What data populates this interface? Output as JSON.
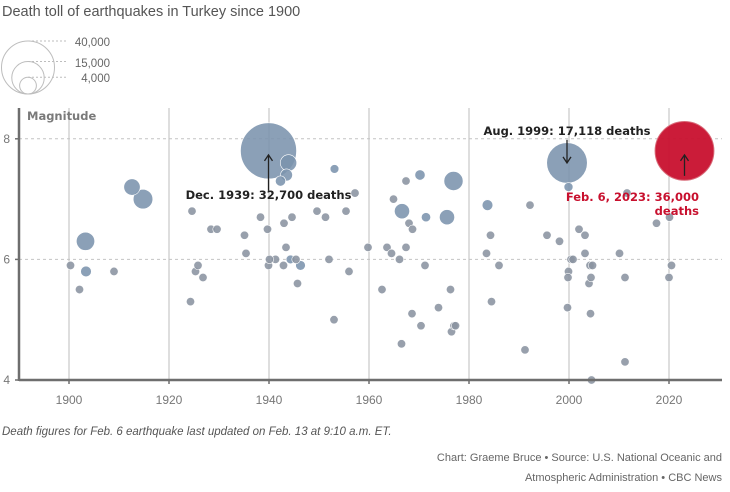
{
  "chart_data": {
    "type": "scatter",
    "title": "Death toll of earthquakes in Turkey since 1900",
    "ylabel": "Magnitude",
    "xlabel": "",
    "xlim": [
      1890,
      2030
    ],
    "ylim": [
      4,
      8.4
    ],
    "x_ticks": [
      1900,
      1920,
      1940,
      1960,
      1980,
      2000,
      2020
    ],
    "y_ticks": [
      4,
      6,
      8
    ],
    "grid": "dashed horizontal at y ticks, solid vertical at x ticks",
    "size_legend": {
      "values": [
        40000,
        15000,
        4000
      ],
      "labels": [
        "40,000",
        "15,000",
        "4,000"
      ],
      "placement": "top-left"
    },
    "colors": {
      "default": "#7b93ad",
      "highlight": "#c8102e",
      "small": "#8a93a0"
    },
    "points": [
      {
        "year": 1900.3,
        "mag": 5.9,
        "deaths": 140
      },
      {
        "year": 1902.1,
        "mag": 5.5,
        "deaths": 100
      },
      {
        "year": 1903.3,
        "mag": 6.3,
        "deaths": 3500
      },
      {
        "year": 1903.4,
        "mag": 5.8,
        "deaths": 1200
      },
      {
        "year": 1909.0,
        "mag": 5.8,
        "deaths": 100
      },
      {
        "year": 1912.6,
        "mag": 7.2,
        "deaths": 2800
      },
      {
        "year": 1914.8,
        "mag": 7.0,
        "deaths": 4000
      },
      {
        "year": 1924.6,
        "mag": 6.8,
        "deaths": 100
      },
      {
        "year": 1924.3,
        "mag": 5.3,
        "deaths": 100
      },
      {
        "year": 1925.3,
        "mag": 5.8,
        "deaths": 150
      },
      {
        "year": 1925.8,
        "mag": 5.9,
        "deaths": 100
      },
      {
        "year": 1926.8,
        "mag": 5.7,
        "deaths": 350
      },
      {
        "year": 1928.4,
        "mag": 6.5,
        "deaths": 200
      },
      {
        "year": 1929.6,
        "mag": 6.5,
        "deaths": 150
      },
      {
        "year": 1935.1,
        "mag": 6.4,
        "deaths": 150
      },
      {
        "year": 1935.4,
        "mag": 6.1,
        "deaths": 700
      },
      {
        "year": 1938.3,
        "mag": 6.7,
        "deaths": 150
      },
      {
        "year": 1939.7,
        "mag": 6.5,
        "deaths": 100
      },
      {
        "year": 1939.9,
        "mag": 5.9,
        "deaths": 100
      },
      {
        "year": 1940.1,
        "mag": 6.0,
        "deaths": 100
      },
      {
        "year": 1939.9,
        "mag": 7.8,
        "deaths": 32700,
        "label": "Dec. 1939: 32,700 deaths"
      },
      {
        "year": 1941.3,
        "mag": 6.0,
        "deaths": 200
      },
      {
        "year": 1942.3,
        "mag": 7.3,
        "deaths": 1100
      },
      {
        "year": 1943.0,
        "mag": 6.6,
        "deaths": 300
      },
      {
        "year": 1943.4,
        "mag": 6.2,
        "deaths": 300
      },
      {
        "year": 1943.5,
        "mag": 7.4,
        "deaths": 1500
      },
      {
        "year": 1943.9,
        "mag": 7.6,
        "deaths": 2800
      },
      {
        "year": 1942.9,
        "mag": 5.9,
        "deaths": 200
      },
      {
        "year": 1944.3,
        "mag": 6.0,
        "deaths": 800
      },
      {
        "year": 1944.6,
        "mag": 6.7,
        "deaths": 100
      },
      {
        "year": 1945.4,
        "mag": 6.0,
        "deaths": 300
      },
      {
        "year": 1946.3,
        "mag": 5.9,
        "deaths": 1000
      },
      {
        "year": 1945.7,
        "mag": 5.6,
        "deaths": 150
      },
      {
        "year": 1949.6,
        "mag": 6.8,
        "deaths": 400
      },
      {
        "year": 1951.3,
        "mag": 6.7,
        "deaths": 100
      },
      {
        "year": 1952.0,
        "mag": 6.0,
        "deaths": 100
      },
      {
        "year": 1953.1,
        "mag": 7.5,
        "deaths": 800
      },
      {
        "year": 1953.0,
        "mag": 5.0,
        "deaths": 100
      },
      {
        "year": 1955.4,
        "mag": 6.8,
        "deaths": 100
      },
      {
        "year": 1956.0,
        "mag": 5.8,
        "deaths": 100
      },
      {
        "year": 1957.2,
        "mag": 7.1,
        "deaths": 200
      },
      {
        "year": 1959.8,
        "mag": 6.2,
        "deaths": 100
      },
      {
        "year": 1962.6,
        "mag": 5.5,
        "deaths": 100
      },
      {
        "year": 1963.6,
        "mag": 6.2,
        "deaths": 100
      },
      {
        "year": 1964.5,
        "mag": 6.1,
        "deaths": 100
      },
      {
        "year": 1964.9,
        "mag": 7.0,
        "deaths": 100
      },
      {
        "year": 1966.1,
        "mag": 6.0,
        "deaths": 100
      },
      {
        "year": 1966.6,
        "mag": 6.8,
        "deaths": 2400
      },
      {
        "year": 1966.5,
        "mag": 4.6,
        "deaths": 100
      },
      {
        "year": 1967.4,
        "mag": 7.3,
        "deaths": 100
      },
      {
        "year": 1967.4,
        "mag": 6.2,
        "deaths": 100
      },
      {
        "year": 1968.0,
        "mag": 6.6,
        "deaths": 100
      },
      {
        "year": 1968.6,
        "mag": 5.1,
        "deaths": 100
      },
      {
        "year": 1968.7,
        "mag": 6.5,
        "deaths": 100
      },
      {
        "year": 1970.2,
        "mag": 7.4,
        "deaths": 1100
      },
      {
        "year": 1970.4,
        "mag": 4.9,
        "deaths": 100
      },
      {
        "year": 1971.4,
        "mag": 6.7,
        "deaths": 900
      },
      {
        "year": 1971.2,
        "mag": 5.9,
        "deaths": 100
      },
      {
        "year": 1973.9,
        "mag": 5.2,
        "deaths": 100
      },
      {
        "year": 1975.6,
        "mag": 6.7,
        "deaths": 2400
      },
      {
        "year": 1976.3,
        "mag": 5.5,
        "deaths": 100
      },
      {
        "year": 1976.5,
        "mag": 4.8,
        "deaths": 100
      },
      {
        "year": 1976.9,
        "mag": 7.3,
        "deaths": 3800
      },
      {
        "year": 1977.0,
        "mag": 4.9,
        "deaths": 100
      },
      {
        "year": 1977.3,
        "mag": 4.9,
        "deaths": 100
      },
      {
        "year": 1983.5,
        "mag": 6.1,
        "deaths": 100
      },
      {
        "year": 1983.7,
        "mag": 6.9,
        "deaths": 1200
      },
      {
        "year": 1984.3,
        "mag": 6.4,
        "deaths": 100
      },
      {
        "year": 1984.5,
        "mag": 5.3,
        "deaths": 100
      },
      {
        "year": 1986.0,
        "mag": 5.9,
        "deaths": 100
      },
      {
        "year": 1991.2,
        "mag": 4.5,
        "deaths": 100
      },
      {
        "year": 1992.2,
        "mag": 6.9,
        "deaths": 650
      },
      {
        "year": 1995.6,
        "mag": 6.4,
        "deaths": 100
      },
      {
        "year": 1998.1,
        "mag": 6.3,
        "deaths": 150
      },
      {
        "year": 1999.6,
        "mag": 7.6,
        "deaths": 17118,
        "label": "Aug. 1999: 17,118 deaths"
      },
      {
        "year": 1999.9,
        "mag": 7.2,
        "deaths": 850
      },
      {
        "year": 1999.9,
        "mag": 5.8,
        "deaths": 100
      },
      {
        "year": 1999.8,
        "mag": 5.7,
        "deaths": 100
      },
      {
        "year": 1999.7,
        "mag": 5.2,
        "deaths": 100
      },
      {
        "year": 2000.4,
        "mag": 6.0,
        "deaths": 100
      },
      {
        "year": 2000.8,
        "mag": 6.0,
        "deaths": 100
      },
      {
        "year": 2002.0,
        "mag": 6.5,
        "deaths": 100
      },
      {
        "year": 2003.2,
        "mag": 6.4,
        "deaths": 150
      },
      {
        "year": 2003.2,
        "mag": 6.1,
        "deaths": 100
      },
      {
        "year": 2004.2,
        "mag": 5.9,
        "deaths": 100
      },
      {
        "year": 2004.7,
        "mag": 5.9,
        "deaths": 100
      },
      {
        "year": 2004.0,
        "mag": 5.6,
        "deaths": 100
      },
      {
        "year": 2004.4,
        "mag": 5.7,
        "deaths": 100
      },
      {
        "year": 2004.3,
        "mag": 5.1,
        "deaths": 100
      },
      {
        "year": 2004.5,
        "mag": 4.0,
        "deaths": 100
      },
      {
        "year": 2010.1,
        "mag": 6.1,
        "deaths": 100
      },
      {
        "year": 2011.2,
        "mag": 5.7,
        "deaths": 100
      },
      {
        "year": 2011.2,
        "mag": 4.3,
        "deaths": 100
      },
      {
        "year": 2011.6,
        "mag": 7.1,
        "deaths": 600
      },
      {
        "year": 2017.5,
        "mag": 6.6,
        "deaths": 100
      },
      {
        "year": 2020.1,
        "mag": 6.7,
        "deaths": 120
      },
      {
        "year": 2020.0,
        "mag": 5.7,
        "deaths": 100
      },
      {
        "year": 2020.5,
        "mag": 5.9,
        "deaths": 100
      },
      {
        "year": 2023.1,
        "mag": 7.8,
        "deaths": 36000,
        "label": "Feb. 6, 2023: 36,000 deaths",
        "highlight": true
      }
    ]
  },
  "annotations": {
    "dec1939": "Dec. 1939: 32,700 deaths",
    "aug1999": "Aug. 1999: 17,118 deaths",
    "feb2023_line1": "Feb. 6, 2023: 36,000",
    "feb2023_line2": "deaths"
  },
  "footer": {
    "note": "Death figures for Feb. 6 earthquake last updated on Feb. 13 at 9:10 a.m. ET.",
    "credit_line1": "Chart: Graeme Bruce • Source: U.S. National Oceanic and",
    "credit_line2": "Atmospheric Administration • CBC News"
  }
}
